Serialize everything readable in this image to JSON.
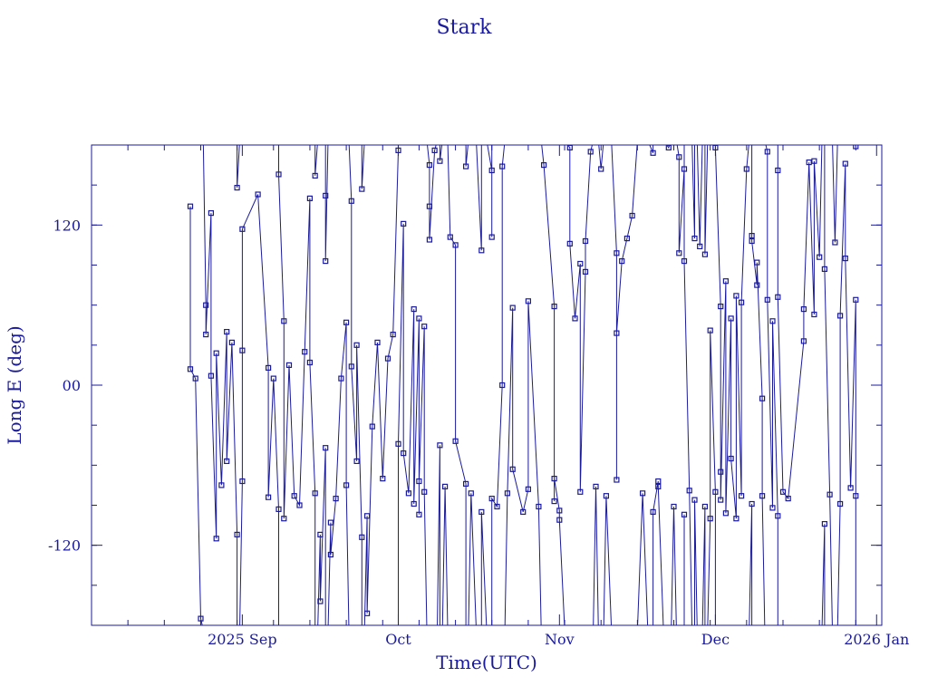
{
  "chart_data": {
    "type": "scatter",
    "title": "Stark",
    "xlabel": "Time(UTC)",
    "ylabel": "Long E (deg)",
    "x_range": [
      "2025-08-03",
      "2026-01-02"
    ],
    "ylim": [
      -180,
      180
    ],
    "grid": false,
    "legend": "none",
    "x_ticks": [
      {
        "date": "2025-09-01",
        "label": "2025 Sep"
      },
      {
        "date": "2025-10-01",
        "label": "Oct"
      },
      {
        "date": "2025-11-01",
        "label": "Nov"
      },
      {
        "date": "2025-12-01",
        "label": "Dec"
      },
      {
        "date": "2026-01-01",
        "label": "2026 Jan"
      }
    ],
    "y_ticks": [
      {
        "value": 120,
        "label": "120"
      },
      {
        "value": 0,
        "label": "00"
      },
      {
        "value": -120,
        "label": "-120"
      }
    ],
    "series": [
      {
        "color": "#1a1a9c",
        "points": [
          [
            "2025-08-22",
            134
          ],
          [
            "2025-08-22",
            12
          ],
          [
            "2025-08-23",
            5
          ],
          [
            "2025-08-24",
            -175
          ],
          [
            "2025-08-25",
            60
          ],
          [
            "2025-08-25",
            38
          ],
          [
            "2025-08-26",
            129
          ],
          [
            "2025-08-26",
            7
          ],
          [
            "2025-08-27",
            -115
          ],
          [
            "2025-08-27",
            24
          ],
          [
            "2025-08-28",
            -75
          ],
          [
            "2025-08-29",
            40
          ],
          [
            "2025-08-29",
            -57
          ],
          [
            "2025-08-30",
            32
          ],
          [
            "2025-08-31",
            -112
          ],
          [
            "2025-08-31",
            148
          ],
          [
            "2025-09-01",
            -72
          ],
          [
            "2025-09-01",
            26
          ],
          [
            "2025-09-01",
            117
          ],
          [
            "2025-09-04",
            143
          ],
          [
            "2025-09-06",
            13
          ],
          [
            "2025-09-06",
            -84
          ],
          [
            "2025-09-07",
            5
          ],
          [
            "2025-09-08",
            -93
          ],
          [
            "2025-09-08",
            158
          ],
          [
            "2025-09-09",
            48
          ],
          [
            "2025-09-09",
            -100
          ],
          [
            "2025-09-10",
            15
          ],
          [
            "2025-09-11",
            -83
          ],
          [
            "2025-09-12",
            -90
          ],
          [
            "2025-09-13",
            25
          ],
          [
            "2025-09-14",
            140
          ],
          [
            "2025-09-14",
            17
          ],
          [
            "2025-09-15",
            -81
          ],
          [
            "2025-09-15",
            157
          ],
          [
            "2025-09-16",
            -112
          ],
          [
            "2025-09-16",
            -162
          ],
          [
            "2025-09-17",
            -47
          ],
          [
            "2025-09-17",
            142
          ],
          [
            "2025-09-17",
            93
          ],
          [
            "2025-09-18",
            -103
          ],
          [
            "2025-09-18",
            -127
          ],
          [
            "2025-09-19",
            -85
          ],
          [
            "2025-09-20",
            5
          ],
          [
            "2025-09-21",
            47
          ],
          [
            "2025-09-21",
            -75
          ],
          [
            "2025-09-22",
            138
          ],
          [
            "2025-09-22",
            14
          ],
          [
            "2025-09-23",
            -57
          ],
          [
            "2025-09-23",
            30
          ],
          [
            "2025-09-24",
            -114
          ],
          [
            "2025-09-24",
            147
          ],
          [
            "2025-09-25",
            -98
          ],
          [
            "2025-09-25",
            -171
          ],
          [
            "2025-09-26",
            -31
          ],
          [
            "2025-09-27",
            32
          ],
          [
            "2025-09-28",
            -70
          ],
          [
            "2025-09-29",
            20
          ],
          [
            "2025-09-30",
            38
          ],
          [
            "2025-10-01",
            176
          ],
          [
            "2025-10-01",
            -44
          ],
          [
            "2025-10-02",
            121
          ],
          [
            "2025-10-02",
            -51
          ],
          [
            "2025-10-03",
            -81
          ],
          [
            "2025-10-04",
            57
          ],
          [
            "2025-10-04",
            -89
          ],
          [
            "2025-10-05",
            50
          ],
          [
            "2025-10-05",
            -97
          ],
          [
            "2025-10-05",
            -72
          ],
          [
            "2025-10-06",
            44
          ],
          [
            "2025-10-06",
            -80
          ],
          [
            "2025-10-07",
            165
          ],
          [
            "2025-10-07",
            134
          ],
          [
            "2025-10-07",
            109
          ],
          [
            "2025-10-08",
            176
          ],
          [
            "2025-10-09",
            -45
          ],
          [
            "2025-10-09",
            168
          ],
          [
            "2025-10-10",
            -76
          ],
          [
            "2025-10-11",
            111
          ],
          [
            "2025-10-12",
            105
          ],
          [
            "2025-10-12",
            -42
          ],
          [
            "2025-10-14",
            -74
          ],
          [
            "2025-10-14",
            164
          ],
          [
            "2025-10-15",
            -81
          ],
          [
            "2025-10-17",
            101
          ],
          [
            "2025-10-17",
            -95
          ],
          [
            "2025-10-19",
            161
          ],
          [
            "2025-10-19",
            111
          ],
          [
            "2025-10-19",
            -85
          ],
          [
            "2025-10-20",
            -91
          ],
          [
            "2025-10-21",
            0
          ],
          [
            "2025-10-21",
            164
          ],
          [
            "2025-10-22",
            -81
          ],
          [
            "2025-10-23",
            58
          ],
          [
            "2025-10-23",
            -63
          ],
          [
            "2025-10-25",
            -95
          ],
          [
            "2025-10-26",
            -78
          ],
          [
            "2025-10-26",
            63
          ],
          [
            "2025-10-28",
            -91
          ],
          [
            "2025-10-29",
            165
          ],
          [
            "2025-10-31",
            59
          ],
          [
            "2025-10-31",
            -87
          ],
          [
            "2025-10-31",
            -70
          ],
          [
            "2025-11-01",
            -94
          ],
          [
            "2025-11-01",
            -101
          ],
          [
            "2025-11-03",
            178
          ],
          [
            "2025-11-03",
            106
          ],
          [
            "2025-11-04",
            50
          ],
          [
            "2025-11-05",
            91
          ],
          [
            "2025-11-05",
            -80
          ],
          [
            "2025-11-06",
            85
          ],
          [
            "2025-11-06",
            108
          ],
          [
            "2025-11-07",
            175
          ],
          [
            "2025-11-08",
            -76
          ],
          [
            "2025-11-09",
            162
          ],
          [
            "2025-11-10",
            -83
          ],
          [
            "2025-11-12",
            99
          ],
          [
            "2025-11-12",
            -71
          ],
          [
            "2025-11-12",
            39
          ],
          [
            "2025-11-13",
            93
          ],
          [
            "2025-11-14",
            110
          ],
          [
            "2025-11-15",
            127
          ],
          [
            "2025-11-17",
            -81
          ],
          [
            "2025-11-19",
            174
          ],
          [
            "2025-11-19",
            -95
          ],
          [
            "2025-11-20",
            -72
          ],
          [
            "2025-11-20",
            -76
          ],
          [
            "2025-11-22",
            178
          ],
          [
            "2025-11-23",
            -91
          ],
          [
            "2025-11-24",
            171
          ],
          [
            "2025-11-24",
            99
          ],
          [
            "2025-11-25",
            162
          ],
          [
            "2025-11-25",
            -97
          ],
          [
            "2025-11-25",
            93
          ],
          [
            "2025-11-26",
            -79
          ],
          [
            "2025-11-27",
            110
          ],
          [
            "2025-11-27",
            -86
          ],
          [
            "2025-11-28",
            104
          ],
          [
            "2025-11-29",
            -91
          ],
          [
            "2025-11-29",
            98
          ],
          [
            "2025-11-30",
            -100
          ],
          [
            "2025-11-30",
            41
          ],
          [
            "2025-12-01",
            -80
          ],
          [
            "2025-12-01",
            178
          ],
          [
            "2025-12-02",
            59
          ],
          [
            "2025-12-02",
            -65
          ],
          [
            "2025-12-02",
            -86
          ],
          [
            "2025-12-03",
            78
          ],
          [
            "2025-12-03",
            -96
          ],
          [
            "2025-12-04",
            50
          ],
          [
            "2025-12-04",
            -55
          ],
          [
            "2025-12-05",
            -100
          ],
          [
            "2025-12-05",
            67
          ],
          [
            "2025-12-06",
            -83
          ],
          [
            "2025-12-06",
            62
          ],
          [
            "2025-12-07",
            162
          ],
          [
            "2025-12-08",
            -89
          ],
          [
            "2025-12-08",
            112
          ],
          [
            "2025-12-08",
            108
          ],
          [
            "2025-12-09",
            75
          ],
          [
            "2025-12-09",
            92
          ],
          [
            "2025-12-10",
            -10
          ],
          [
            "2025-12-10",
            -83
          ],
          [
            "2025-12-11",
            175
          ],
          [
            "2025-12-11",
            64
          ],
          [
            "2025-12-12",
            -92
          ],
          [
            "2025-12-12",
            48
          ],
          [
            "2025-12-13",
            -98
          ],
          [
            "2025-12-13",
            161
          ],
          [
            "2025-12-13",
            66
          ],
          [
            "2025-12-14",
            -80
          ],
          [
            "2025-12-15",
            -85
          ],
          [
            "2025-12-18",
            33
          ],
          [
            "2025-12-18",
            57
          ],
          [
            "2025-12-19",
            167
          ],
          [
            "2025-12-20",
            53
          ],
          [
            "2025-12-20",
            168
          ],
          [
            "2025-12-21",
            96
          ],
          [
            "2025-12-22",
            -104
          ],
          [
            "2025-12-22",
            87
          ],
          [
            "2025-12-23",
            -82
          ],
          [
            "2025-12-24",
            107
          ],
          [
            "2025-12-25",
            -89
          ],
          [
            "2025-12-25",
            52
          ],
          [
            "2025-12-26",
            166
          ],
          [
            "2025-12-26",
            95
          ],
          [
            "2025-12-27",
            -77
          ],
          [
            "2025-12-28",
            64
          ],
          [
            "2025-12-28",
            -83
          ],
          [
            "2025-12-28",
            179
          ]
        ]
      }
    ]
  }
}
